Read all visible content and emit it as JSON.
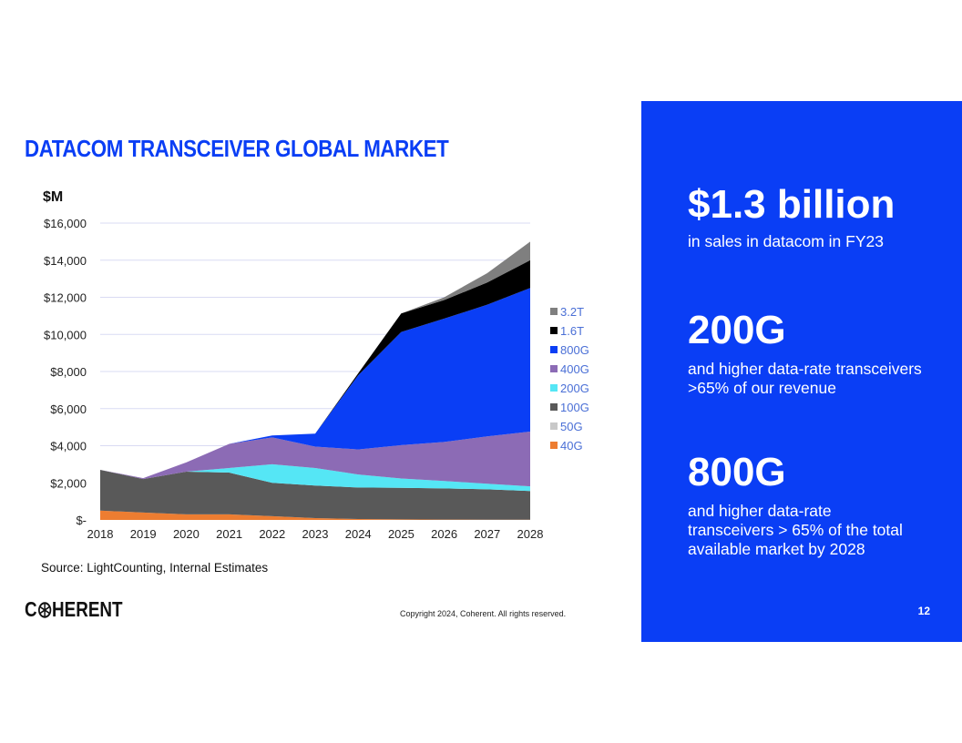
{
  "slide": {
    "title": "DATACOM TRANSCEIVER GLOBAL MARKET",
    "source": "Source: LightCounting, Internal Estimates",
    "brand": {
      "prefix": "C",
      "suffix": "HERENT"
    },
    "copyright": "Copyright 2024, Coherent. All rights reserved.",
    "page_number": "12",
    "accent_color": "#0a3ef5"
  },
  "panel": {
    "stats": [
      {
        "value": "$1.3 billion",
        "description": "in sales in datacom in FY23"
      },
      {
        "value": "200G",
        "description": "and higher data-rate transceivers >65% of our revenue"
      },
      {
        "value": "800G",
        "description": "and higher data-rate transceivers > 65% of the total available market by 2028"
      }
    ]
  },
  "chart_data": {
    "type": "area",
    "stacked": true,
    "title": "",
    "ylabel": "$M",
    "xlabel": "",
    "ylim": [
      0,
      16000
    ],
    "yticks": [
      0,
      2000,
      4000,
      6000,
      8000,
      10000,
      12000,
      14000,
      16000
    ],
    "ytick_labels": [
      "$-",
      "$2,000",
      "$4,000",
      "$6,000",
      "$8,000",
      "$10,000",
      "$12,000",
      "$14,000",
      "$16,000"
    ],
    "grid": true,
    "legend_position": "right",
    "x": [
      "2018",
      "2019",
      "2020",
      "2021",
      "2022",
      "2023",
      "2024",
      "2025",
      "2026",
      "2027",
      "2028"
    ],
    "series": [
      {
        "name": "40G",
        "color": "#ed7d31",
        "values": [
          500,
          400,
          300,
          300,
          200,
          100,
          50,
          30,
          20,
          10,
          10
        ]
      },
      {
        "name": "50G",
        "color": "#c8c8c8",
        "values": [
          0,
          0,
          0,
          0,
          0,
          0,
          0,
          0,
          0,
          0,
          0
        ]
      },
      {
        "name": "100G",
        "color": "#595959",
        "values": [
          2200,
          1800,
          2300,
          2250,
          1800,
          1750,
          1700,
          1700,
          1680,
          1640,
          1550
        ]
      },
      {
        "name": "200G",
        "color": "#55e6f5",
        "values": [
          0,
          0,
          0,
          250,
          1000,
          950,
          700,
          500,
          400,
          300,
          250
        ]
      },
      {
        "name": "400G",
        "color": "#8c6bb5",
        "values": [
          0,
          50,
          500,
          1300,
          1450,
          1150,
          1350,
          1800,
          2100,
          2550,
          2950
        ]
      },
      {
        "name": "800G",
        "color": "#0a3ef5",
        "values": [
          0,
          0,
          0,
          0,
          100,
          700,
          4000,
          6100,
          6650,
          7100,
          7740
        ]
      },
      {
        "name": "1.6T",
        "color": "#000000",
        "values": [
          0,
          0,
          0,
          0,
          0,
          0,
          100,
          1000,
          1000,
          1200,
          1500
        ]
      },
      {
        "name": "3.2T",
        "color": "#7f7f7f",
        "values": [
          0,
          0,
          0,
          0,
          0,
          0,
          0,
          0,
          150,
          500,
          1000
        ]
      }
    ],
    "legend_order": [
      "3.2T",
      "1.6T",
      "800G",
      "400G",
      "200G",
      "100G",
      "50G",
      "40G"
    ]
  }
}
